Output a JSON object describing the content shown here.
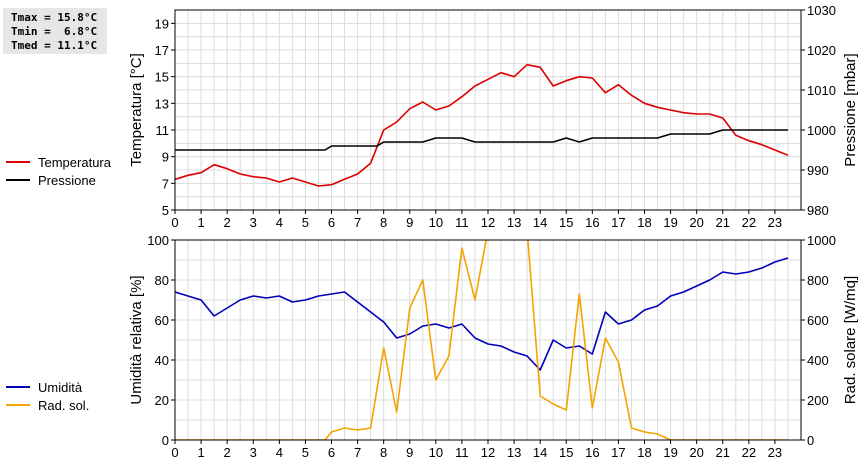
{
  "stats": {
    "tmax": "Tmax = 15.8°C",
    "tmin": "Tmin =  6.8°C",
    "tmed": "Tmed = 11.1°C"
  },
  "colors": {
    "temperature": "#dd0000",
    "pressure": "#000000",
    "humidity": "#0000bb",
    "radiation": "#f5a300",
    "grid": "#dcdcdc"
  },
  "chart_data": [
    {
      "type": "line",
      "ylabel": "Temperatura [°C]",
      "y2label": "Pressione [mbar]",
      "xlim": [
        0,
        24
      ],
      "xticks": [
        0,
        1,
        2,
        3,
        4,
        5,
        6,
        7,
        8,
        9,
        10,
        11,
        12,
        13,
        14,
        15,
        16,
        17,
        18,
        19,
        20,
        21,
        22,
        23
      ],
      "ylim": [
        5,
        20
      ],
      "yticks": [
        5,
        7,
        9,
        11,
        13,
        15,
        17,
        19
      ],
      "y2lim": [
        980,
        1030
      ],
      "y2ticks": [
        980,
        990,
        1000,
        1010,
        1020,
        1030
      ],
      "grid": true,
      "legend_position": "left",
      "series": [
        {
          "name": "Temperatura",
          "axis": "left",
          "x": [
            0,
            0.5,
            1,
            1.5,
            2,
            2.5,
            3,
            3.5,
            4,
            4.5,
            5,
            5.5,
            6,
            6.5,
            7,
            7.5,
            8,
            8.5,
            9,
            9.5,
            10,
            10.5,
            11,
            11.5,
            12,
            12.5,
            13,
            13.5,
            14,
            14.5,
            15,
            15.5,
            16,
            16.5,
            17,
            17.5,
            18,
            18.5,
            19,
            19.5,
            20,
            20.5,
            21,
            21.5,
            22,
            22.5,
            23,
            23.5
          ],
          "y": [
            7.3,
            7.6,
            7.8,
            8.4,
            8.1,
            7.7,
            7.5,
            7.4,
            7.1,
            7.4,
            7.1,
            6.8,
            6.9,
            7.3,
            7.7,
            8.5,
            11.0,
            11.6,
            12.6,
            13.1,
            12.5,
            12.8,
            13.5,
            14.3,
            14.8,
            15.3,
            15.0,
            15.9,
            15.7,
            14.3,
            14.7,
            15.0,
            14.9,
            13.8,
            14.4,
            13.6,
            13.0,
            12.7,
            12.5,
            12.3,
            12.2,
            12.2,
            11.9,
            10.6,
            10.2,
            9.9,
            9.5,
            9.1
          ]
        },
        {
          "name": "Pressione",
          "axis": "right",
          "x": [
            0,
            0.5,
            1,
            1.5,
            2,
            2.5,
            3,
            3.5,
            4,
            4.5,
            5,
            5.5,
            5.75,
            6,
            6.5,
            7,
            7.5,
            7.75,
            8,
            8.5,
            9,
            9.5,
            9.75,
            10,
            10.5,
            11,
            11.5,
            12,
            12.5,
            13,
            13.5,
            14,
            14.5,
            15,
            15.5,
            16,
            16.5,
            17,
            17.5,
            18,
            18.5,
            19,
            19.5,
            20,
            20.5,
            21,
            21.5,
            22,
            22.5,
            23,
            23.5
          ],
          "y": [
            995,
            995,
            995,
            995,
            995,
            995,
            995,
            995,
            995,
            995,
            995,
            995,
            995,
            996,
            996,
            996,
            996,
            996,
            997,
            997,
            997,
            997,
            997.5,
            998,
            998,
            998,
            997,
            997,
            997,
            997,
            997,
            997,
            997,
            998,
            997,
            998,
            998,
            998,
            998,
            998,
            998,
            999,
            999,
            999,
            999,
            1000,
            1000,
            1000,
            1000,
            1000,
            1000
          ]
        }
      ]
    },
    {
      "type": "line",
      "ylabel": "Umidità relativa [%]",
      "y2label": "Rad. solare [W/mq]",
      "xlim": [
        0,
        24
      ],
      "xticks": [
        0,
        1,
        2,
        3,
        4,
        5,
        6,
        7,
        8,
        9,
        10,
        11,
        12,
        13,
        14,
        15,
        16,
        17,
        18,
        19,
        20,
        21,
        22,
        23
      ],
      "ylim": [
        0,
        100
      ],
      "yticks": [
        0,
        20,
        40,
        60,
        80,
        100
      ],
      "y2lim": [
        0,
        1000
      ],
      "y2ticks": [
        0,
        200,
        400,
        600,
        800,
        1000
      ],
      "grid": true,
      "legend_position": "left",
      "series": [
        {
          "name": "Umidità",
          "axis": "left",
          "x": [
            0,
            0.5,
            1,
            1.5,
            2,
            2.5,
            3,
            3.5,
            4,
            4.5,
            5,
            5.5,
            6,
            6.5,
            7,
            7.5,
            8,
            8.5,
            9,
            9.5,
            10,
            10.5,
            11,
            11.5,
            12,
            12.5,
            13,
            13.5,
            14,
            14.5,
            15,
            15.5,
            16,
            16.5,
            17,
            17.5,
            18,
            18.5,
            19,
            19.5,
            20,
            20.5,
            21,
            21.5,
            22,
            22.5,
            23,
            23.5
          ],
          "y": [
            74,
            72,
            70,
            62,
            66,
            70,
            72,
            71,
            72,
            69,
            70,
            72,
            73,
            74,
            69,
            64,
            59,
            51,
            53,
            57,
            58,
            56,
            58,
            51,
            48,
            47,
            44,
            42,
            35,
            50,
            46,
            47,
            43,
            64,
            58,
            60,
            65,
            67,
            72,
            74,
            77,
            80,
            84,
            83,
            84,
            86,
            89,
            91
          ]
        },
        {
          "name": "Rad. sol.",
          "axis": "right",
          "x": [
            0,
            0.5,
            1,
            1.5,
            2,
            2.5,
            3,
            3.5,
            4,
            4.5,
            5,
            5.5,
            5.75,
            6,
            6.5,
            7,
            7.5,
            8,
            8.5,
            9,
            9.5,
            10,
            10.5,
            11,
            11.5,
            12,
            12.5,
            13,
            13.5,
            14,
            14.5,
            15,
            15.5,
            16,
            16.5,
            17,
            17.5,
            18,
            18.5,
            19,
            19.5,
            20,
            20.5,
            21,
            21.5,
            22,
            22.5,
            23,
            23.5
          ],
          "y": [
            0,
            0,
            0,
            0,
            0,
            0,
            0,
            0,
            0,
            0,
            0,
            0,
            0,
            40,
            60,
            50,
            60,
            460,
            140,
            660,
            800,
            300,
            420,
            960,
            700,
            1050,
            1100,
            1080,
            1050,
            220,
            180,
            150,
            730,
            160,
            510,
            390,
            60,
            40,
            30,
            0,
            0,
            0,
            0,
            0,
            0,
            0,
            0,
            0,
            0
          ]
        }
      ]
    }
  ]
}
